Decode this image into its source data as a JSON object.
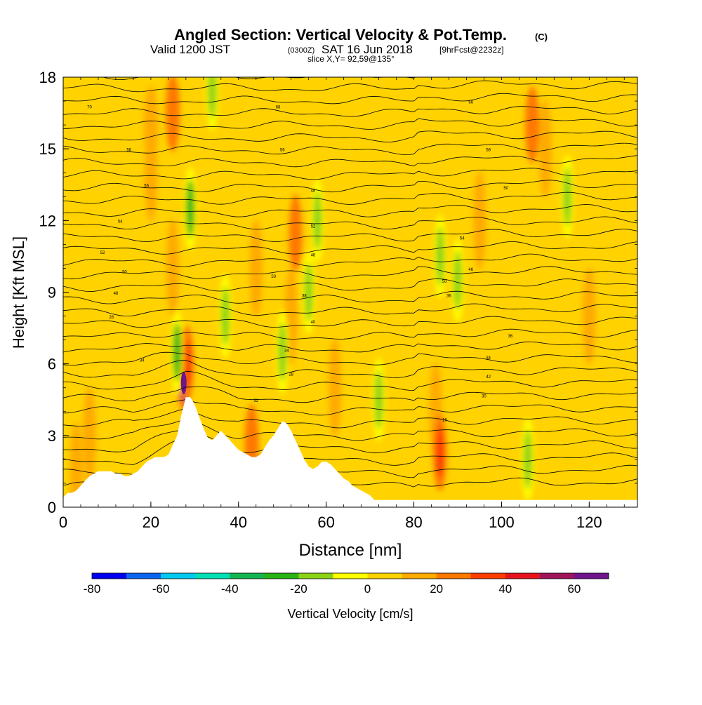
{
  "header": {
    "title_main": "Angled Section: Vertical Velocity & Pot.Temp.",
    "title_mark": "(C)",
    "sub_valid": "Valid 1200 JST",
    "sub_z": "(0300Z)",
    "sub_date": "SAT 16 Jun 2018",
    "sub_fcst": "[9hrFcst@2232z]",
    "slice": "slice X,Y= 92,59@135°"
  },
  "chart_data": {
    "type": "heatmap",
    "xlabel": "Distance [nm]",
    "ylabel": "Height [Kft MSL]",
    "xlim": [
      0,
      131
    ],
    "ylim": [
      0,
      18
    ],
    "x_ticks": [
      0,
      20,
      40,
      60,
      80,
      100,
      120
    ],
    "y_ticks": [
      0,
      3,
      6,
      9,
      12,
      15,
      18
    ],
    "colorbar": {
      "label": "Vertical Velocity [cm/s]",
      "bounds": [
        -80,
        70
      ],
      "step": 10,
      "tick_values": [
        -80,
        -60,
        -40,
        -20,
        0,
        20,
        40,
        60
      ],
      "colors": [
        "#0000f0",
        "#0a64f0",
        "#00c8f0",
        "#00e0b4",
        "#14b450",
        "#28b414",
        "#8cd214",
        "#ffff00",
        "#ffd200",
        "#ffaa00",
        "#ff7800",
        "#ff3c00",
        "#e6141e",
        "#a0145a",
        "#6e148c"
      ]
    },
    "background_value_range": [
      0,
      10
    ],
    "terrain_kft": [
      [
        0,
        0.4
      ],
      [
        1,
        0.6
      ],
      [
        2,
        0.6
      ],
      [
        3,
        0.7
      ],
      [
        4,
        0.9
      ],
      [
        5,
        1.1
      ],
      [
        6,
        1.3
      ],
      [
        7,
        1.4
      ],
      [
        8,
        1.5
      ],
      [
        9,
        1.5
      ],
      [
        10,
        1.5
      ],
      [
        11,
        1.5
      ],
      [
        12,
        1.4
      ],
      [
        13,
        1.4
      ],
      [
        14,
        1.3
      ],
      [
        15,
        1.3
      ],
      [
        16,
        1.4
      ],
      [
        17,
        1.5
      ],
      [
        18,
        1.7
      ],
      [
        19,
        1.9
      ],
      [
        20,
        2.0
      ],
      [
        21,
        2.1
      ],
      [
        22,
        2.1
      ],
      [
        23,
        2.1
      ],
      [
        24,
        2.2
      ],
      [
        25,
        2.6
      ],
      [
        26,
        3.0
      ],
      [
        27,
        3.9
      ],
      [
        28,
        4.6
      ],
      [
        29,
        4.6
      ],
      [
        30,
        4.3
      ],
      [
        31,
        3.8
      ],
      [
        32,
        3.3
      ],
      [
        33,
        2.9
      ],
      [
        34,
        2.8
      ],
      [
        35,
        3.0
      ],
      [
        36,
        3.2
      ],
      [
        37,
        3.0
      ],
      [
        38,
        2.8
      ],
      [
        39,
        2.6
      ],
      [
        40,
        2.4
      ],
      [
        41,
        2.3
      ],
      [
        42,
        2.2
      ],
      [
        43,
        2.1
      ],
      [
        44,
        2.1
      ],
      [
        45,
        2.2
      ],
      [
        46,
        2.5
      ],
      [
        47,
        2.8
      ],
      [
        48,
        3.0
      ],
      [
        49,
        3.3
      ],
      [
        50,
        3.6
      ],
      [
        51,
        3.5
      ],
      [
        52,
        3.2
      ],
      [
        53,
        2.8
      ],
      [
        54,
        2.4
      ],
      [
        55,
        2.0
      ],
      [
        56,
        1.7
      ],
      [
        57,
        1.6
      ],
      [
        58,
        1.7
      ],
      [
        59,
        1.9
      ],
      [
        60,
        1.9
      ],
      [
        61,
        1.8
      ],
      [
        62,
        1.6
      ],
      [
        63,
        1.4
      ],
      [
        64,
        1.2
      ],
      [
        65,
        1.1
      ],
      [
        66,
        0.9
      ],
      [
        67,
        0.8
      ],
      [
        68,
        0.7
      ],
      [
        69,
        0.6
      ],
      [
        70,
        0.5
      ],
      [
        71,
        0.3
      ],
      [
        131,
        0.3
      ]
    ],
    "updraft_cores": [
      {
        "x": 27.5,
        "z": 5.2,
        "w": 62
      },
      {
        "x": 28.2,
        "z": 6.0,
        "w": 35
      },
      {
        "x": 86,
        "z": 2.3,
        "w": 35
      },
      {
        "x": 53,
        "z": 11.5,
        "w": 22
      },
      {
        "x": 25,
        "z": 16.5,
        "w": 25
      },
      {
        "x": 107,
        "z": 16,
        "w": 20
      },
      {
        "x": 20,
        "z": 16,
        "w": 18
      },
      {
        "x": 43,
        "z": 2.7,
        "w": 20
      }
    ],
    "downdraft_cores": [
      {
        "x": 29,
        "z": 12.5,
        "w": -28
      },
      {
        "x": 26,
        "z": 6.5,
        "w": -25
      },
      {
        "x": 37,
        "z": 8.0,
        "w": -20
      },
      {
        "x": 50,
        "z": 6.5,
        "w": -18
      },
      {
        "x": 58,
        "z": 12.0,
        "w": -18
      },
      {
        "x": 56,
        "z": 9.0,
        "w": -15
      },
      {
        "x": 90,
        "z": 9.5,
        "w": -18
      },
      {
        "x": 115,
        "z": 13.0,
        "w": -20
      },
      {
        "x": 34,
        "z": 17.5,
        "w": -15
      },
      {
        "x": 86,
        "z": 10.5,
        "w": -12
      },
      {
        "x": 72,
        "z": 4.5,
        "w": -12
      },
      {
        "x": 106,
        "z": 2.0,
        "w": -12
      }
    ],
    "isentrope_labels": [
      {
        "x": 6,
        "z": 16.7,
        "text": "70"
      },
      {
        "x": 49,
        "z": 16.7,
        "text": "68"
      },
      {
        "x": 93,
        "z": 16.9,
        "text": "66"
      },
      {
        "x": 15,
        "z": 14.9,
        "text": "58"
      },
      {
        "x": 50,
        "z": 14.9,
        "text": "56"
      },
      {
        "x": 97,
        "z": 14.9,
        "text": "58"
      },
      {
        "x": 19,
        "z": 13.4,
        "text": "56"
      },
      {
        "x": 57,
        "z": 13.2,
        "text": "48"
      },
      {
        "x": 101,
        "z": 13.3,
        "text": "50"
      },
      {
        "x": 13,
        "z": 11.9,
        "text": "54"
      },
      {
        "x": 57,
        "z": 11.7,
        "text": "52"
      },
      {
        "x": 91,
        "z": 11.2,
        "text": "54"
      },
      {
        "x": 9,
        "z": 10.6,
        "text": "52"
      },
      {
        "x": 57,
        "z": 10.5,
        "text": "46"
      },
      {
        "x": 14,
        "z": 9.8,
        "text": "50"
      },
      {
        "x": 48,
        "z": 9.6,
        "text": "50"
      },
      {
        "x": 93,
        "z": 9.9,
        "text": "46"
      },
      {
        "x": 12,
        "z": 8.9,
        "text": "48"
      },
      {
        "x": 55,
        "z": 8.8,
        "text": "38"
      },
      {
        "x": 87,
        "z": 9.4,
        "text": "50"
      },
      {
        "x": 88,
        "z": 8.8,
        "text": "36"
      },
      {
        "x": 11,
        "z": 7.9,
        "text": "28"
      },
      {
        "x": 57,
        "z": 7.7,
        "text": "40"
      },
      {
        "x": 102,
        "z": 7.1,
        "text": "36"
      },
      {
        "x": 18,
        "z": 6.1,
        "text": "34"
      },
      {
        "x": 51,
        "z": 6.5,
        "text": "34"
      },
      {
        "x": 97,
        "z": 6.2,
        "text": "34"
      },
      {
        "x": 52,
        "z": 5.5,
        "text": "28"
      },
      {
        "x": 97,
        "z": 5.4,
        "text": "42"
      },
      {
        "x": 44,
        "z": 4.4,
        "text": "32"
      },
      {
        "x": 96,
        "z": 4.6,
        "text": "30"
      },
      {
        "x": 87,
        "z": 3.6,
        "text": "16"
      }
    ]
  }
}
